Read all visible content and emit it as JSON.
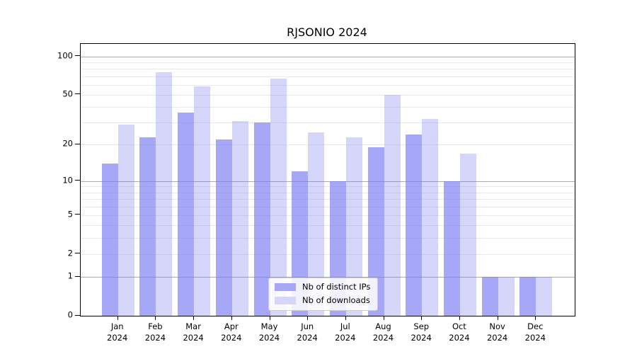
{
  "title": "RJSONIO 2024",
  "chart_data": {
    "type": "bar",
    "title": "RJSONIO 2024",
    "x_categories": [
      "Jan 2024",
      "Feb 2024",
      "Mar 2024",
      "Apr 2024",
      "May 2024",
      "Jun 2024",
      "Jul 2024",
      "Aug 2024",
      "Sep 2024",
      "Oct 2024",
      "Nov 2024",
      "Dec 2024"
    ],
    "x_months": [
      "Jan",
      "Feb",
      "Mar",
      "Apr",
      "May",
      "Jun",
      "Jul",
      "Aug",
      "Sep",
      "Oct",
      "Nov",
      "Dec"
    ],
    "x_year": "2024",
    "series": [
      {
        "name": "Nb of distinct IPs",
        "color": "#a7a7f6",
        "fill": "rgba(120,120,242,0.65)",
        "values": [
          14,
          23,
          36,
          22,
          30,
          12,
          10,
          19,
          24,
          10,
          1,
          1
        ]
      },
      {
        "name": "Nb of downloads",
        "color": "#d6d6fb",
        "fill": "rgba(120,120,242,0.30)",
        "values": [
          29,
          75,
          58,
          31,
          67,
          25,
          23,
          50,
          32,
          17,
          1,
          1
        ]
      }
    ],
    "y_scale": "log1p",
    "ylim": [
      0,
      125
    ],
    "y_ticks": [
      0,
      1,
      2,
      5,
      10,
      20,
      50,
      100
    ],
    "y_gridlines_major": [
      1,
      10,
      100
    ],
    "y_gridlines_minor": [
      2,
      3,
      4,
      5,
      6,
      7,
      8,
      9,
      20,
      30,
      40,
      50,
      60,
      70,
      80,
      90
    ],
    "grid": true,
    "legend_position": "bottom-center",
    "colors": {
      "grid_major": "#ababab",
      "grid_minor": "#e9e9e9",
      "spine": "#000000",
      "text": "#000000",
      "background": "#ffffff",
      "legend_border": "#cccccc"
    }
  }
}
